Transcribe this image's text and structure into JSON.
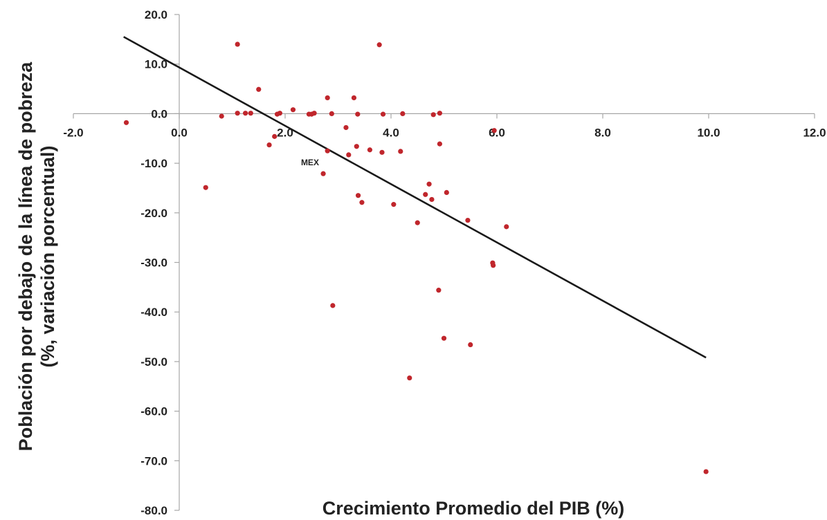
{
  "chart_data": {
    "type": "scatter",
    "xlabel": "Crecimiento Promedio del PIB (%)",
    "ylabel_lines": [
      "Población por debajo de la línea de pobreza",
      "(%, variación  porcentual)"
    ],
    "xlim": [
      -2.0,
      12.0
    ],
    "ylim": [
      -80.0,
      20.0
    ],
    "x_ticks": [
      "-2.0",
      "0.0",
      "2.0",
      "4.0",
      "6.0",
      "8.0",
      "10.0",
      "12.0"
    ],
    "y_ticks": [
      "20.0",
      "10.0",
      "0.0",
      "-10.0",
      "-20.0",
      "-30.0",
      "-40.0",
      "-50.0",
      "-60.0",
      "-70.0",
      "-80.0"
    ],
    "grid": false,
    "point_color": "#c0262c",
    "trendline_color": "#1a1a1a",
    "points": [
      {
        "x": -1.0,
        "y": -1.8
      },
      {
        "x": 0.5,
        "y": -14.9
      },
      {
        "x": 0.8,
        "y": -0.5
      },
      {
        "x": 1.1,
        "y": 14.0
      },
      {
        "x": 1.1,
        "y": 0.1
      },
      {
        "x": 1.25,
        "y": 0.1
      },
      {
        "x": 1.35,
        "y": 0.1
      },
      {
        "x": 1.5,
        "y": 4.9
      },
      {
        "x": 1.7,
        "y": -6.3
      },
      {
        "x": 1.8,
        "y": -4.6
      },
      {
        "x": 1.85,
        "y": -0.1
      },
      {
        "x": 1.9,
        "y": 0.1
      },
      {
        "x": 2.15,
        "y": 0.8
      },
      {
        "x": 2.45,
        "y": -0.1
      },
      {
        "x": 2.5,
        "y": -0.1
      },
      {
        "x": 2.55,
        "y": 0.1
      },
      {
        "x": 2.72,
        "y": -12.1
      },
      {
        "x": 2.8,
        "y": -7.5
      },
      {
        "x": 2.8,
        "y": 3.2
      },
      {
        "x": 2.88,
        "y": 0.0
      },
      {
        "x": 2.9,
        "y": -38.7
      },
      {
        "x": 3.15,
        "y": -2.8
      },
      {
        "x": 3.2,
        "y": -8.3
      },
      {
        "x": 3.3,
        "y": 3.2
      },
      {
        "x": 3.35,
        "y": -6.6
      },
      {
        "x": 3.37,
        "y": -0.1
      },
      {
        "x": 3.38,
        "y": -16.5
      },
      {
        "x": 3.45,
        "y": -17.9
      },
      {
        "x": 3.6,
        "y": -7.3
      },
      {
        "x": 3.78,
        "y": 13.9
      },
      {
        "x": 3.83,
        "y": -7.8
      },
      {
        "x": 3.85,
        "y": -0.1
      },
      {
        "x": 4.05,
        "y": -18.3
      },
      {
        "x": 4.18,
        "y": -7.6
      },
      {
        "x": 4.22,
        "y": 0.0
      },
      {
        "x": 4.35,
        "y": -53.3
      },
      {
        "x": 4.5,
        "y": -22.0
      },
      {
        "x": 4.65,
        "y": -16.3
      },
      {
        "x": 4.72,
        "y": -14.2
      },
      {
        "x": 4.77,
        "y": -17.3
      },
      {
        "x": 4.8,
        "y": -0.2
      },
      {
        "x": 4.9,
        "y": -35.6
      },
      {
        "x": 4.92,
        "y": 0.1
      },
      {
        "x": 4.92,
        "y": -6.1
      },
      {
        "x": 5.0,
        "y": -45.3
      },
      {
        "x": 5.05,
        "y": -15.9
      },
      {
        "x": 5.45,
        "y": -21.5
      },
      {
        "x": 5.5,
        "y": -46.6
      },
      {
        "x": 5.92,
        "y": -30.1
      },
      {
        "x": 5.93,
        "y": -30.6
      },
      {
        "x": 5.95,
        "y": -3.4
      },
      {
        "x": 6.18,
        "y": -22.8
      },
      {
        "x": 9.95,
        "y": -72.2
      }
    ],
    "trendline": {
      "x": [
        -1.05,
        9.95
      ],
      "y": [
        15.5,
        -49.2
      ]
    },
    "annotations": [
      {
        "text": "MEX",
        "x": 2.3,
        "y": -10.4
      }
    ]
  }
}
